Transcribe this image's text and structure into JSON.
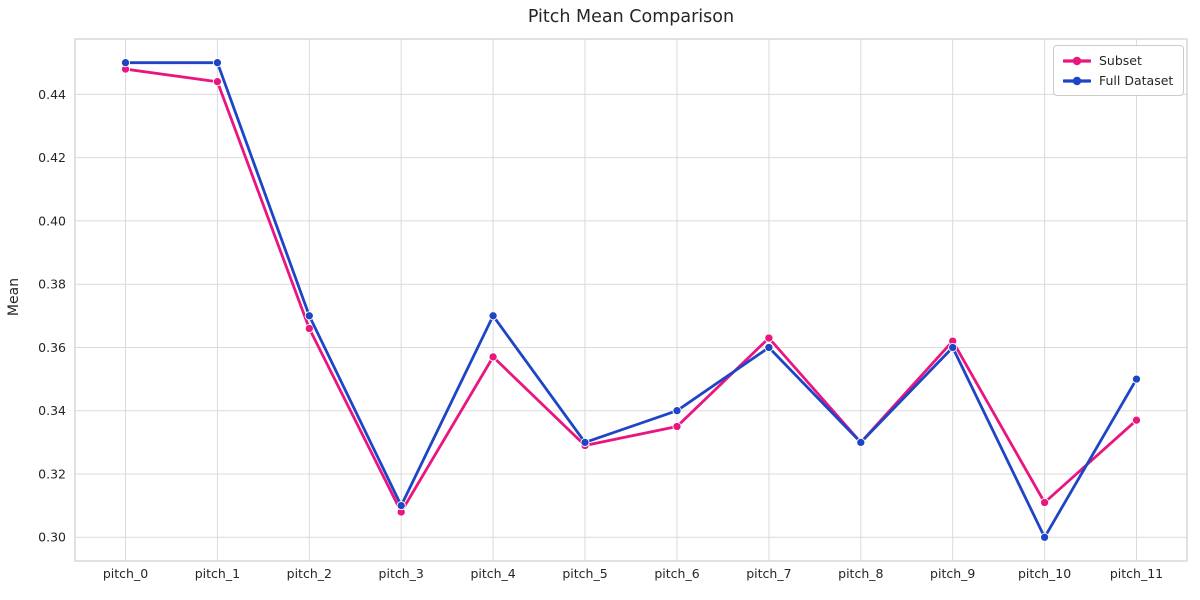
{
  "chart_data": {
    "type": "line",
    "title": "Pitch Mean Comparison",
    "ylabel": "Mean",
    "xlabel": "",
    "categories": [
      "pitch_0",
      "pitch_1",
      "pitch_2",
      "pitch_3",
      "pitch_4",
      "pitch_5",
      "pitch_6",
      "pitch_7",
      "pitch_8",
      "pitch_9",
      "pitch_10",
      "pitch_11"
    ],
    "series": [
      {
        "name": "Subset",
        "color": "#EA157F",
        "marker": "circle",
        "values": [
          0.448,
          0.444,
          0.366,
          0.308,
          0.357,
          0.329,
          0.335,
          0.363,
          0.33,
          0.362,
          0.311,
          0.337
        ]
      },
      {
        "name": "Full Dataset",
        "color": "#1E45C5",
        "marker": "circle",
        "values": [
          0.45,
          0.45,
          0.37,
          0.31,
          0.37,
          0.33,
          0.34,
          0.36,
          0.33,
          0.36,
          0.3,
          0.35
        ]
      }
    ],
    "xlim": [
      -0.55,
      11.55
    ],
    "ylim": [
      0.2925,
      0.4575
    ],
    "yticks": [
      0.3,
      0.32,
      0.34,
      0.36,
      0.38,
      0.4,
      0.42,
      0.44
    ],
    "grid": true,
    "legend_position": "upper right",
    "colors": {
      "grid": "#DBDBDB",
      "spine": "#CFCFCF",
      "text": "#262626",
      "background": "#FFFFFF"
    }
  }
}
